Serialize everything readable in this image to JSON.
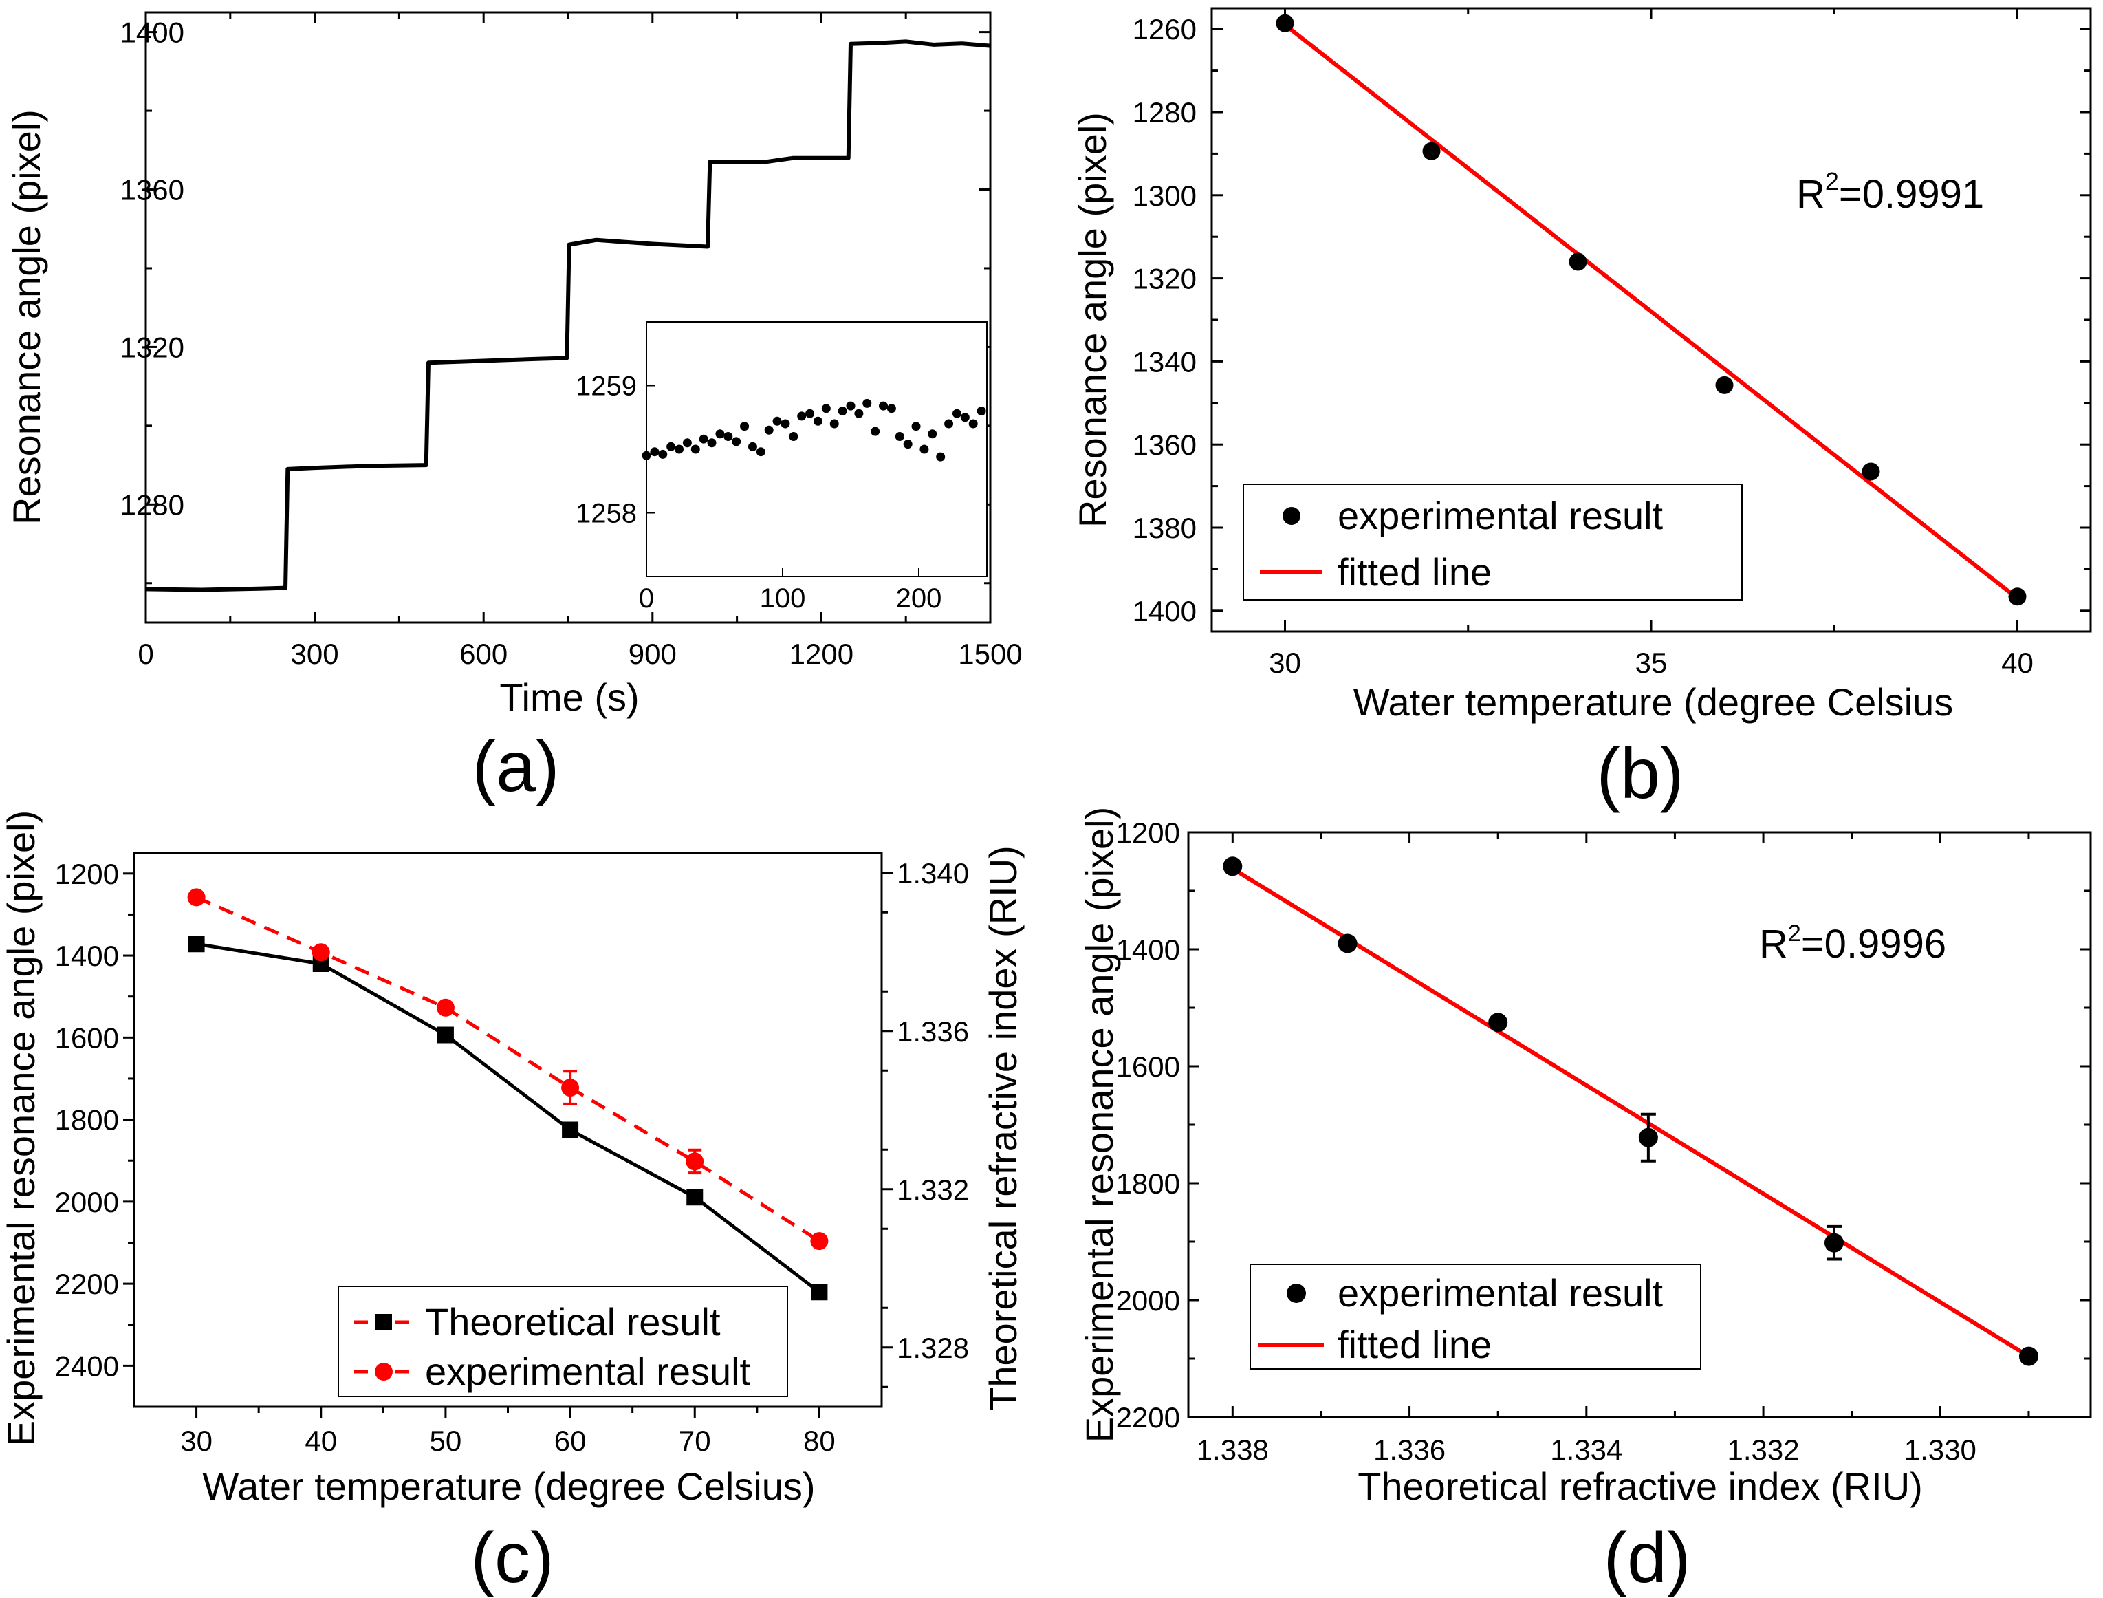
{
  "chart_data": [
    {
      "id": "a",
      "type": "line",
      "panel_label": "(a)",
      "xlabel": "Time (s)",
      "ylabel": "Resonance angle (pixel)",
      "xlim": [
        0,
        1500
      ],
      "ylim": [
        1250,
        1405
      ],
      "xticks": [
        "0",
        "300",
        "600",
        "900",
        "1200",
        "1500"
      ],
      "yticks": [
        "1280",
        "1320",
        "1360",
        "1400"
      ],
      "series": [
        {
          "x": [
            0,
            100,
            200,
            248,
            252,
            300,
            400,
            498,
            502,
            600,
            700,
            748,
            752,
            800,
            900,
            998,
            1002,
            1100,
            1150,
            1248,
            1252,
            1300,
            1350,
            1400,
            1450,
            1500
          ],
          "y": [
            1258.5,
            1258.3,
            1258.6,
            1258.8,
            1289,
            1289.3,
            1289.8,
            1290,
            1316,
            1316.5,
            1317,
            1317.2,
            1346,
            1347.2,
            1346.2,
            1345.5,
            1367,
            1367,
            1368,
            1368,
            1397,
            1397.2,
            1397.6,
            1396.8,
            1397.1,
            1396.5
          ],
          "color": "#000000"
        }
      ],
      "inset": {
        "type": "scatter",
        "xlim": [
          0,
          250
        ],
        "ylim": [
          1257.5,
          1259.5
        ],
        "xticks": [
          "0",
          "100",
          "200"
        ],
        "yticks": [
          "1258",
          "1259"
        ],
        "x": [
          0,
          6,
          12,
          18,
          24,
          30,
          36,
          42,
          48,
          54,
          60,
          66,
          72,
          78,
          84,
          90,
          96,
          102,
          108,
          114,
          120,
          126,
          132,
          138,
          144,
          150,
          156,
          162,
          168,
          174,
          180,
          186,
          192,
          198,
          204,
          210,
          216,
          222,
          228,
          234,
          240,
          246
        ],
        "y": [
          1258.45,
          1258.48,
          1258.46,
          1258.52,
          1258.5,
          1258.55,
          1258.5,
          1258.58,
          1258.55,
          1258.62,
          1258.6,
          1258.56,
          1258.68,
          1258.52,
          1258.48,
          1258.65,
          1258.72,
          1258.7,
          1258.6,
          1258.76,
          1258.78,
          1258.72,
          1258.82,
          1258.7,
          1258.8,
          1258.84,
          1258.78,
          1258.86,
          1258.64,
          1258.84,
          1258.82,
          1258.6,
          1258.54,
          1258.68,
          1258.5,
          1258.62,
          1258.44,
          1258.7,
          1258.78,
          1258.75,
          1258.7,
          1258.8
        ],
        "color": "#000000"
      }
    },
    {
      "id": "b",
      "type": "scatter",
      "panel_label": "(b)",
      "xlabel": "Water temperature (degree Celsius",
      "ylabel": "Resonance angle (pixel)",
      "xlim": [
        29,
        41
      ],
      "ylim": [
        1405,
        1255
      ],
      "xticks": [
        "30",
        "35",
        "40"
      ],
      "yticks": [
        "1260",
        "1280",
        "1300",
        "1320",
        "1340",
        "1360",
        "1380",
        "1400"
      ],
      "annotation": {
        "base": "R",
        "sup": "2",
        "rest": "=0.9991"
      },
      "legend": [
        "experimental result",
        "fitted line"
      ],
      "legend_position": "bottom-left",
      "points": {
        "x": [
          30,
          32,
          34,
          36,
          38,
          40
        ],
        "y": [
          1258.6,
          1289.4,
          1316,
          1345.7,
          1366.5,
          1396.6
        ]
      },
      "fit": {
        "x": [
          30,
          40
        ],
        "y": [
          1259,
          1397
        ]
      },
      "point_color": "#000000",
      "fit_color": "#ff0000"
    },
    {
      "id": "c",
      "type": "line",
      "panel_label": "(c)",
      "xlabel": "Water temperature (degree Celsius)",
      "ylabel": "Experimental resonance angle (pixel)",
      "y2label": "Theoretical refractive index (RIU)",
      "xlim": [
        25,
        85
      ],
      "ylim": [
        2500,
        1150
      ],
      "y2lim": [
        1.3265,
        1.3405
      ],
      "xticks": [
        "30",
        "40",
        "50",
        "60",
        "70",
        "80"
      ],
      "yticks": [
        "1200",
        "1400",
        "1600",
        "1800",
        "2000",
        "2200",
        "2400"
      ],
      "y2ticks": [
        "1.340",
        "1.336",
        "1.332",
        "1.328"
      ],
      "legend": [
        "Theoretical result",
        "experimental result"
      ],
      "legend_position": "bottom-right",
      "series": [
        {
          "name": "Theoretical result",
          "axis": "right",
          "x": [
            30,
            40,
            50,
            60,
            70,
            80
          ],
          "y": [
            1.3382,
            1.3377,
            1.3359,
            1.3335,
            1.3318,
            1.3294
          ],
          "color": "#000000"
        },
        {
          "name": "experimental result",
          "axis": "left",
          "x": [
            30,
            40,
            50,
            60,
            70,
            80
          ],
          "y": [
            1258,
            1392,
            1527,
            1722,
            1902,
            2096
          ],
          "err": [
            0,
            0,
            0,
            40,
            28,
            0
          ],
          "color": "#ff0000"
        }
      ]
    },
    {
      "id": "d",
      "type": "scatter",
      "panel_label": "(d)",
      "xlabel": "Theoretical refractive index (RIU)",
      "ylabel": "Experimental resonance angle (pixel)",
      "xlim": [
        1.3385,
        1.3283
      ],
      "ylim": [
        2200,
        1200
      ],
      "xticks": [
        "1.338",
        "1.336",
        "1.334",
        "1.332",
        "1.330"
      ],
      "yticks": [
        "1200",
        "1400",
        "1600",
        "1800",
        "2000",
        "2200"
      ],
      "annotation": {
        "base": "R",
        "sup": "2",
        "rest": "=0.9996"
      },
      "legend": [
        "experimental result",
        "fitted line"
      ],
      "legend_position": "bottom-left",
      "points": {
        "x": [
          1.338,
          1.3367,
          1.335,
          1.3333,
          1.3312,
          1.329
        ],
        "y": [
          1258,
          1390,
          1525,
          1722,
          1902,
          2096
        ],
        "err": [
          0,
          0,
          0,
          40,
          28,
          0
        ]
      },
      "fit": {
        "x": [
          1.338,
          1.329
        ],
        "y": [
          1262,
          2096
        ]
      },
      "point_color": "#000000",
      "fit_color": "#ff0000"
    }
  ]
}
